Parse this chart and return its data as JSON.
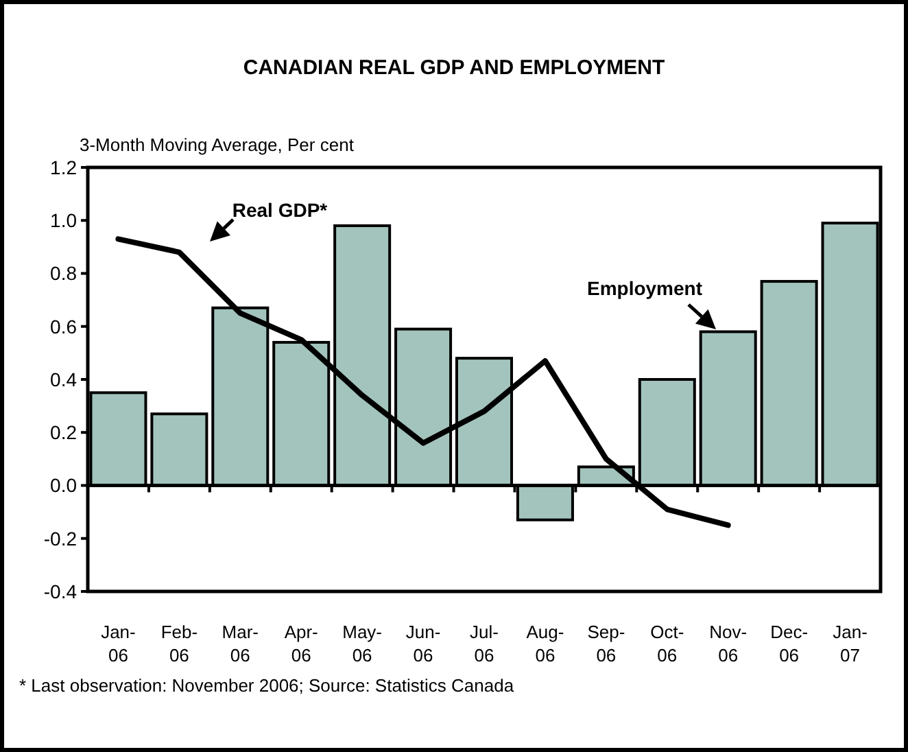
{
  "chart_data": {
    "type": "bar",
    "title": "CANADIAN REAL GDP AND EMPLOYMENT",
    "ylabel": "3-Month Moving Average, Per cent",
    "categories": [
      "Jan-06",
      "Feb-06",
      "Mar-06",
      "Apr-06",
      "May-06",
      "Jun-06",
      "Jul-06",
      "Aug-06",
      "Sep-06",
      "Oct-06",
      "Nov-06",
      "Dec-06",
      "Jan-07"
    ],
    "series": [
      {
        "name": "Employment",
        "color": "#a3c4bd",
        "values": [
          0.35,
          0.27,
          0.67,
          0.54,
          0.98,
          0.59,
          0.48,
          -0.13,
          0.07,
          0.4,
          0.58,
          0.77,
          0.99
        ]
      },
      {
        "name": "Real GDP*",
        "type": "line",
        "color": "#000000",
        "values": [
          0.93,
          0.88,
          0.65,
          0.55,
          0.34,
          0.16,
          0.28,
          0.47,
          0.1,
          -0.09,
          -0.15,
          null,
          null
        ]
      }
    ],
    "ylim": [
      -0.4,
      1.2
    ],
    "yticks": [
      {
        "value": -0.4,
        "label": "-0.4"
      },
      {
        "value": -0.2,
        "label": "-0.2"
      },
      {
        "value": 0,
        "label": "0.0"
      },
      {
        "value": 0.2,
        "label": "0.2"
      },
      {
        "value": 0.4,
        "label": "0.4"
      },
      {
        "value": 0.6,
        "label": "0.6"
      },
      {
        "value": 0.8,
        "label": "0.8"
      },
      {
        "value": 1,
        "label": "1.0"
      },
      {
        "value": 1.2,
        "label": "1.2"
      }
    ],
    "marker": "none",
    "line_style": "solid",
    "annotations": [
      "* Last observation: November 2006; Source: Statistics Canada"
    ]
  }
}
